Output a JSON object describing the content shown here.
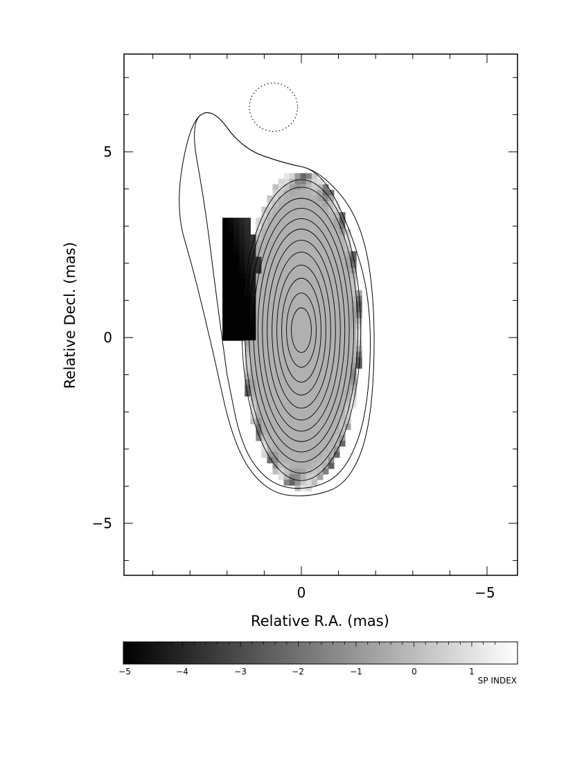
{
  "chart_data": {
    "type": "heatmap",
    "subtype": "spectral index map with total intensity contours",
    "xlabel": "Relative R.A. (mas)",
    "ylabel": "Relative Decl. (mas)",
    "xlim": [
      4.7,
      -5.8
    ],
    "ylim": [
      -6.3,
      7.6
    ],
    "x_ticks": [
      0,
      -5
    ],
    "x_tick_labels": [
      "0",
      "−5"
    ],
    "y_ticks": [
      5,
      0,
      -5
    ],
    "y_tick_labels": [
      "5",
      "0",
      "−5"
    ],
    "minor_tick_step": 1,
    "colorbar": {
      "label": "SP INDEX",
      "range": [
        -5.05,
        1.7
      ],
      "ticks": [
        -5,
        -4,
        -3,
        -2,
        -1,
        0,
        1
      ],
      "tick_labels": [
        "−5",
        "−4",
        "−3",
        "−2",
        "−1",
        "0",
        "1"
      ],
      "colormap": "gray (black = low, white = high)"
    },
    "spectral_index_regions": [
      {
        "description": "compact core region",
        "ra_center": 0.0,
        "dec_center": 0.2,
        "semi_axis_ra": 1.6,
        "semi_axis_dec": 4.3,
        "value": -0.4
      },
      {
        "description": "north-eastern steep-spectrum patch",
        "ra_range": [
          2.3,
          0.9
        ],
        "dec_range": [
          0.0,
          3.2
        ],
        "value": -5.0
      },
      {
        "description": "outer edge pixels",
        "value_range": [
          -3.0,
          1.2
        ]
      }
    ],
    "contours": {
      "center": [
        0.0,
        0.2
      ],
      "inner_contours": [
        {
          "ra_half_width": 0.27,
          "dec_half_height": 0.6
        },
        {
          "ra_half_width": 0.4,
          "dec_half_height": 1.0
        },
        {
          "ra_half_width": 0.53,
          "dec_half_height": 1.4
        },
        {
          "ra_half_width": 0.66,
          "dec_half_height": 1.75
        },
        {
          "ra_half_width": 0.79,
          "dec_half_height": 2.1
        },
        {
          "ra_half_width": 0.92,
          "dec_half_height": 2.42
        },
        {
          "ra_half_width": 1.05,
          "dec_half_height": 2.72
        },
        {
          "ra_half_width": 1.17,
          "dec_half_height": 3.0
        },
        {
          "ra_half_width": 1.29,
          "dec_half_height": 3.28
        },
        {
          "ra_half_width": 1.41,
          "dec_half_height": 3.55
        },
        {
          "ra_half_width": 1.52,
          "dec_half_height": 3.85
        },
        {
          "ra_half_width": 1.6,
          "dec_half_height": 4.05
        }
      ],
      "outer_contours": [
        {
          "path": [
            [
              2.0,
              -1.0
            ],
            [
              2.3,
              1.2
            ],
            [
              2.6,
              3.6
            ],
            [
              3.0,
              5.8
            ],
            [
              2.4,
              6.2
            ],
            [
              1.6,
              5.1
            ],
            [
              0.5,
              4.7
            ],
            [
              -0.5,
              4.5
            ],
            [
              -1.3,
              3.0
            ],
            [
              -1.9,
              0.9
            ],
            [
              -1.8,
              -2.0
            ],
            [
              -1.2,
              -3.6
            ],
            [
              -0.3,
              -4.1
            ],
            [
              0.8,
              -4.0
            ],
            [
              1.6,
              -3.0
            ],
            [
              2.0,
              -1.0
            ]
          ]
        },
        {
          "path": [
            [
              2.4,
              -0.3
            ],
            [
              2.9,
              1.8
            ],
            [
              3.4,
              3.5
            ],
            [
              3.0,
              5.8
            ],
            [
              2.4,
              6.2
            ],
            [
              1.6,
              5.1
            ],
            [
              0.5,
              4.7
            ],
            [
              -0.5,
              4.5
            ],
            [
              -1.6,
              3.2
            ],
            [
              -2.0,
              0.9
            ],
            [
              -1.9,
              -2.3
            ],
            [
              -1.3,
              -3.9
            ],
            [
              -0.3,
              -4.3
            ],
            [
              0.9,
              -4.2
            ],
            [
              1.8,
              -3.0
            ],
            [
              2.4,
              -0.3
            ]
          ]
        }
      ],
      "beam": {
        "ra_center": 0.75,
        "dec_center": 6.2,
        "radius": 0.65,
        "style": "dotted"
      }
    }
  }
}
